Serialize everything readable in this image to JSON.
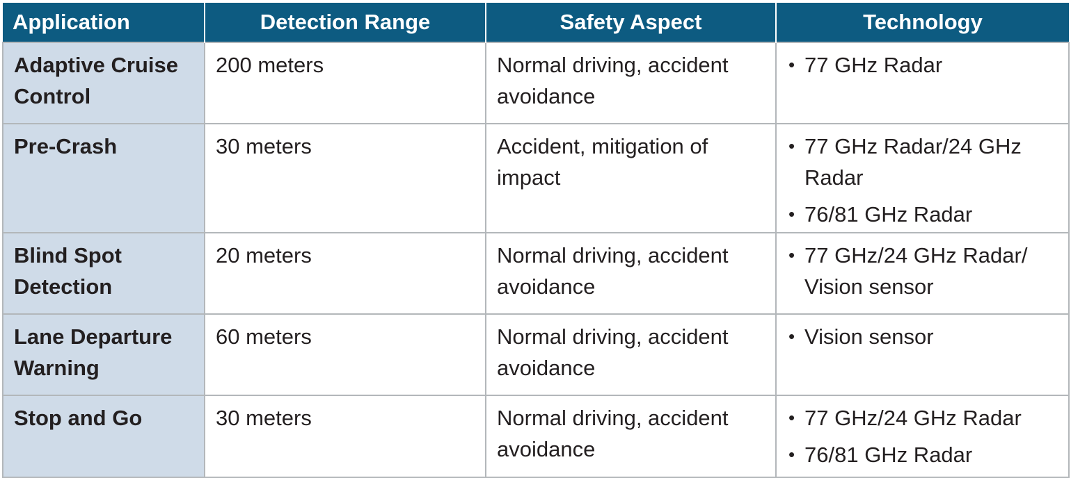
{
  "header": {
    "application": "Application",
    "detection_range": "Detection Range",
    "safety_aspect": "Safety Aspect",
    "technology": "Technology"
  },
  "rows": [
    {
      "application": "Adaptive Cruise Control",
      "range": "200 meters",
      "safety": "Normal driving, accident avoidance",
      "technology": [
        "77 GHz Radar"
      ]
    },
    {
      "application": "Pre-Crash",
      "range": "30 meters",
      "safety": "Accident, mitigation of impact",
      "technology": [
        "77 GHz Radar/24 GHz Radar",
        "76/81 GHz Radar"
      ]
    },
    {
      "application": "Blind Spot Detection",
      "range": "20 meters",
      "safety": "Normal driving, accident avoidance",
      "technology": [
        "77 GHz/24 GHz Radar/ Vision sensor"
      ]
    },
    {
      "application": "Lane Departure Warning",
      "range": "60 meters",
      "safety": "Normal driving, accident avoidance",
      "technology": [
        "Vision sensor"
      ]
    },
    {
      "application": "Stop and Go",
      "range": "30 meters",
      "safety": "Normal driving, accident avoidance",
      "technology": [
        "77 GHz/24 GHz Radar",
        "76/81 GHz Radar"
      ]
    }
  ],
  "bullet": "•",
  "colors": {
    "header_bg": "#0d5b81",
    "header_text": "#ffffff",
    "first_column_bg": "#cfdbe8",
    "grid_line": "#b3b7ba",
    "body_text": "#231f20"
  }
}
